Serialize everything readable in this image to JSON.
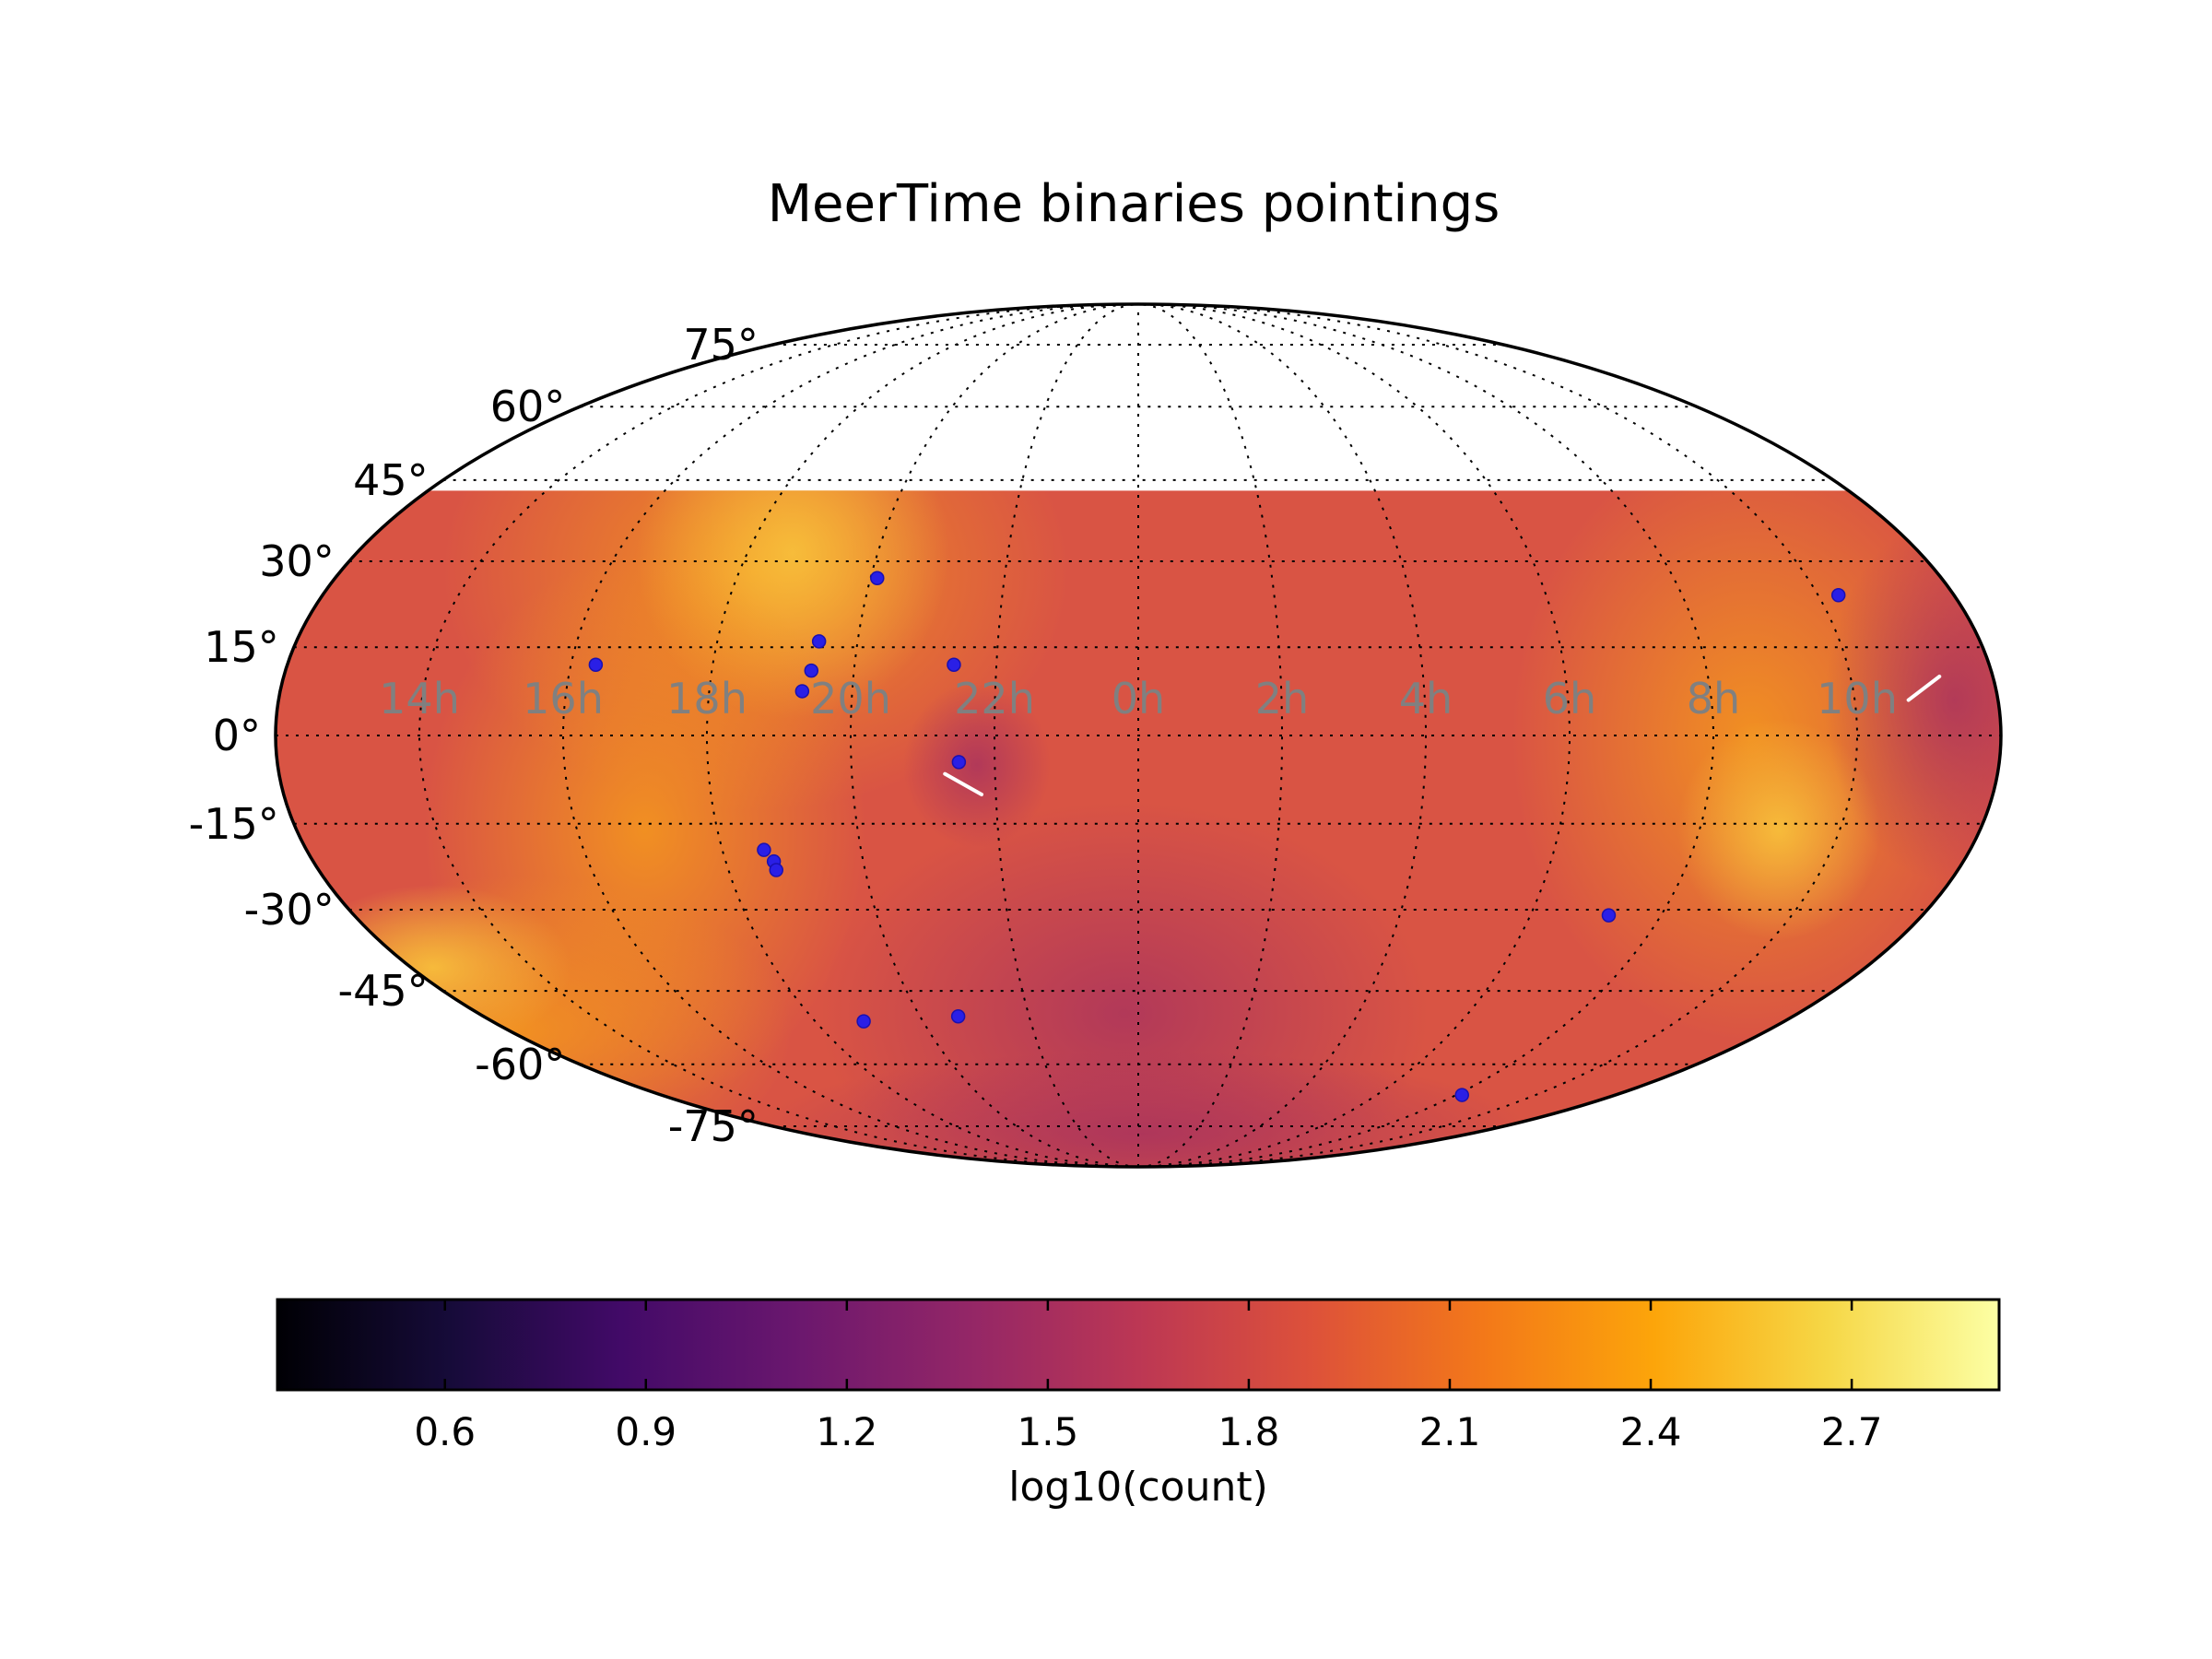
{
  "chart_data": {
    "type": "heatmap",
    "projection": "mollweide",
    "title": "MeerTime binaries pointings",
    "dec_labels": [
      "75°",
      "60°",
      "45°",
      "30°",
      "15°",
      "0°",
      "-15°",
      "-30°",
      "-45°",
      "-60°",
      "-75°"
    ],
    "dec_values": [
      75,
      60,
      45,
      30,
      15,
      0,
      -15,
      -30,
      -45,
      -60,
      -75
    ],
    "ra_labels": [
      "14h",
      "16h",
      "18h",
      "20h",
      "22h",
      "0h",
      "2h",
      "4h",
      "6h",
      "8h",
      "10h"
    ],
    "ra_values": [
      14,
      16,
      18,
      20,
      22,
      0,
      2,
      4,
      6,
      8,
      10
    ],
    "coverage_dec_max": 43,
    "colorbar": {
      "label": "log10(count)",
      "min": 0.35,
      "max": 2.92,
      "ticks": [
        0.6,
        0.9,
        1.2,
        1.5,
        1.8,
        2.1,
        2.4,
        2.7
      ],
      "tick_labels": [
        "0.6",
        "0.9",
        "1.2",
        "1.5",
        "1.8",
        "2.1",
        "2.4",
        "2.7"
      ],
      "colormap": "inferno"
    },
    "pointings": [
      {
        "ra": 16.35,
        "dec": 12
      },
      {
        "ra": 19.45,
        "dec": 16
      },
      {
        "ra": 19.4,
        "dec": 11
      },
      {
        "ra": 19.3,
        "dec": 7.5
      },
      {
        "ra": 20.1,
        "dec": 27
      },
      {
        "ra": 21.4,
        "dec": 12
      },
      {
        "ra": 21.5,
        "dec": -4.5
      },
      {
        "ra": 18.6,
        "dec": -19.5
      },
      {
        "ra": 18.7,
        "dec": -21.5
      },
      {
        "ra": 18.7,
        "dec": -23
      },
      {
        "ra": 18.9,
        "dec": -51
      },
      {
        "ra": 20.7,
        "dec": -50
      },
      {
        "ra": 7.2,
        "dec": -31
      },
      {
        "ra": 8.15,
        "dec": -67
      },
      {
        "ra": 10.3,
        "dec": 24
      }
    ],
    "tracks": [
      {
        "from": {
          "ra": 21.3,
          "dec": -6.5
        },
        "to": {
          "ra": 21.8,
          "dec": -10
        }
      },
      {
        "from": {
          "ra": 10.75,
          "dec": 6
        },
        "to": {
          "ra": 11.25,
          "dec": 10
        }
      }
    ]
  }
}
